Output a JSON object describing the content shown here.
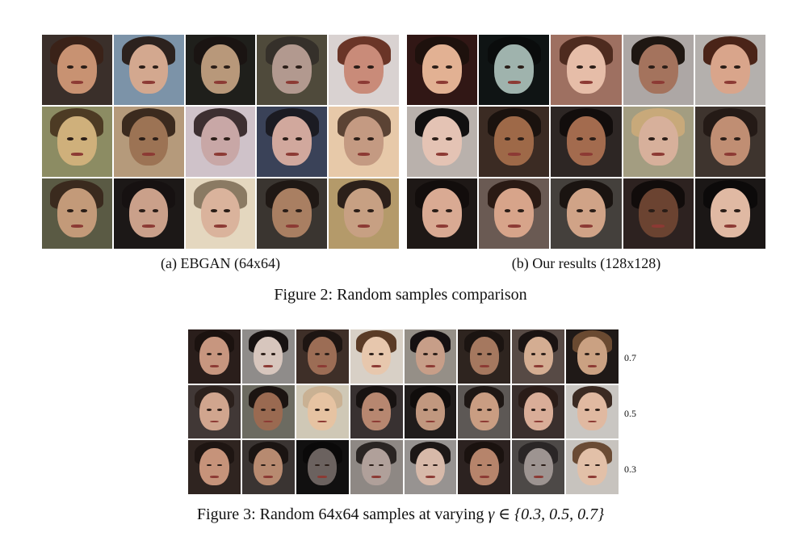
{
  "figure2": {
    "subcaption_a": "(a) EBGAN (64x64)",
    "subcaption_b": "(b) Our results (128x128)",
    "caption": "Figure 2: Random samples comparison",
    "ebgan_samples": [
      {
        "bg": "#3a2f2a",
        "skin": "#c89272",
        "hair": "#3a2218"
      },
      {
        "bg": "#7c93a8",
        "skin": "#d3a88f",
        "hair": "#2c221e"
      },
      {
        "bg": "#1f1f1b",
        "skin": "#b8987a",
        "hair": "#1a1412"
      },
      {
        "bg": "#4f4a3b",
        "skin": "#b2998f",
        "hair": "#35302a"
      },
      {
        "bg": "#d9d2d1",
        "skin": "#c98b79",
        "hair": "#6a3527"
      },
      {
        "bg": "#8c8c63",
        "skin": "#cfb07b",
        "hair": "#4d3b24"
      },
      {
        "bg": "#b59a7b",
        "skin": "#9c7354",
        "hair": "#3b2a1e"
      },
      {
        "bg": "#cfc2c9",
        "skin": "#c8a7a6",
        "hair": "#3d2f31"
      },
      {
        "bg": "#3a4258",
        "skin": "#d1a89d",
        "hair": "#1b1b22"
      },
      {
        "bg": "#e7c9a9",
        "skin": "#c49a82",
        "hair": "#5b4334"
      },
      {
        "bg": "#5a5a44",
        "skin": "#c39a79",
        "hair": "#3a2a1e"
      },
      {
        "bg": "#1c1817",
        "skin": "#caa08a",
        "hair": "#161111"
      },
      {
        "bg": "#e4d7bf",
        "skin": "#dab39c",
        "hair": "#8a7a63"
      },
      {
        "bg": "#3a3530",
        "skin": "#a97f62",
        "hair": "#1f1814"
      },
      {
        "bg": "#b49a6a",
        "skin": "#c7a083",
        "hair": "#2c201a"
      }
    ],
    "our_samples": [
      {
        "bg": "#311715",
        "skin": "#e2b193",
        "hair": "#1e110d"
      },
      {
        "bg": "#0f1414",
        "skin": "#9fb3ad",
        "hair": "#0a0c0c"
      },
      {
        "bg": "#9e7061",
        "skin": "#e6bda8",
        "hair": "#4e2b1f"
      },
      {
        "bg": "#ada7a5",
        "skin": "#a4735d",
        "hair": "#1f1712"
      },
      {
        "bg": "#b4b0ad",
        "skin": "#d9a58b",
        "hair": "#4a2418"
      },
      {
        "bg": "#b9b1ac",
        "skin": "#e4c3b4",
        "hair": "#111010"
      },
      {
        "bg": "#3b2b23",
        "skin": "#9e6948",
        "hair": "#1a120e"
      },
      {
        "bg": "#2d2624",
        "skin": "#a36b4e",
        "hair": "#120d0c"
      },
      {
        "bg": "#a39d81",
        "skin": "#d7b09b",
        "hair": "#c8a97a"
      },
      {
        "bg": "#3e342e",
        "skin": "#c08e73",
        "hair": "#241a16"
      },
      {
        "bg": "#1e1816",
        "skin": "#d9aa93",
        "hair": "#120d0c"
      },
      {
        "bg": "#6a5a53",
        "skin": "#d7a48a",
        "hair": "#2a1a14"
      },
      {
        "bg": "#44403c",
        "skin": "#d0a387",
        "hair": "#1a1411"
      },
      {
        "bg": "#2d2220",
        "skin": "#6b4331",
        "hair": "#110c0b"
      },
      {
        "bg": "#1b1716",
        "skin": "#e0b9a3",
        "hair": "#0c0a0a"
      }
    ]
  },
  "figure3": {
    "caption_text": "Figure 3: Random 64x64 samples at varying ",
    "caption_math": "γ ∈ {0.3, 0.5, 0.7}",
    "row_labels": [
      "0.7",
      "0.5",
      "0.3"
    ],
    "samples": [
      {
        "bg": "#2a1e1b",
        "skin": "#c7967f",
        "hair": "#1b120f"
      },
      {
        "bg": "#8f8c8a",
        "skin": "#d7c6bd",
        "hair": "#171211"
      },
      {
        "bg": "#3e2f28",
        "skin": "#9c6d55",
        "hair": "#1d1512"
      },
      {
        "bg": "#d8d0c6",
        "skin": "#e7c7ad",
        "hair": "#5a3b26"
      },
      {
        "bg": "#958f87",
        "skin": "#c79e88",
        "hair": "#151011"
      },
      {
        "bg": "#2e241f",
        "skin": "#a5785f",
        "hair": "#1b1411"
      },
      {
        "bg": "#574a45",
        "skin": "#d4ad92",
        "hair": "#1a1312"
      },
      {
        "bg": "#1f1917",
        "skin": "#caa182",
        "hair": "#6a4a31"
      },
      {
        "bg": "#413836",
        "skin": "#d0a58e",
        "hair": "#2b201c"
      },
      {
        "bg": "#6c6b61",
        "skin": "#9a6a51",
        "hair": "#1b1411"
      },
      {
        "bg": "#cfc8b6",
        "skin": "#e6c3a2",
        "hair": "#c9b193"
      },
      {
        "bg": "#383131",
        "skin": "#b78770",
        "hair": "#171211"
      },
      {
        "bg": "#201c1b",
        "skin": "#c1987f",
        "hair": "#100d0c"
      },
      {
        "bg": "#5d5855",
        "skin": "#c99d82",
        "hair": "#1e1714"
      },
      {
        "bg": "#3a2f2d",
        "skin": "#d9ad98",
        "hair": "#2a1c18"
      },
      {
        "bg": "#c9c6c2",
        "skin": "#e0b9a1",
        "hair": "#3b2a22"
      },
      {
        "bg": "#2f2420",
        "skin": "#c6937a",
        "hair": "#1e1512"
      },
      {
        "bg": "#3a3432",
        "skin": "#b78a70",
        "hair": "#1a1412"
      },
      {
        "bg": "#111010",
        "skin": "#6b625f",
        "hair": "#0a0909"
      },
      {
        "bg": "#8e8884",
        "skin": "#b0a09a",
        "hair": "#2a2523"
      },
      {
        "bg": "#979391",
        "skin": "#d7b9a9",
        "hair": "#1c1716"
      },
      {
        "bg": "#2c2220",
        "skin": "#b6846b",
        "hair": "#1a120f"
      },
      {
        "bg": "#4d4947",
        "skin": "#9d9491",
        "hair": "#2a2626"
      },
      {
        "bg": "#c7c3be",
        "skin": "#e2c0a8",
        "hair": "#6a4b34"
      }
    ]
  }
}
